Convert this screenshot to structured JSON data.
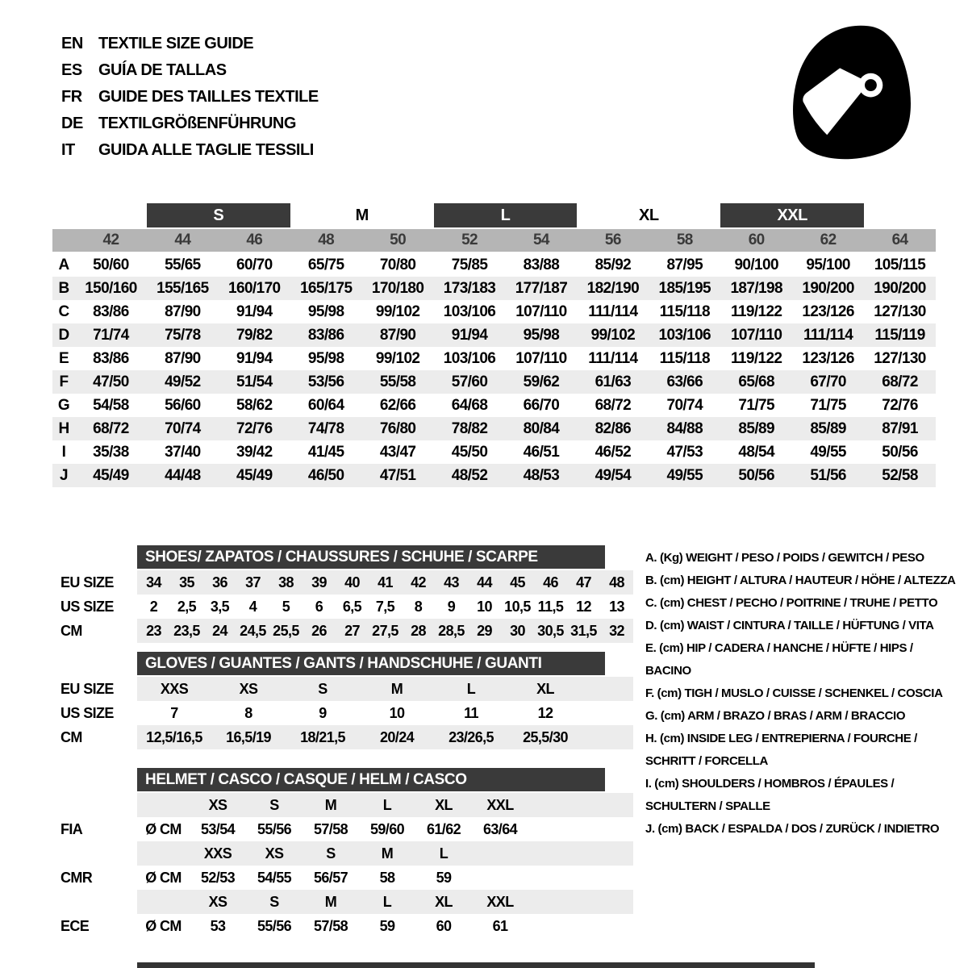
{
  "header": {
    "languages": [
      {
        "code": "EN",
        "title": "TEXTILE SIZE GUIDE"
      },
      {
        "code": "ES",
        "title": "GUÍA DE TALLAS"
      },
      {
        "code": "FR",
        "title": "GUIDE DES TAILLES TEXTILE"
      },
      {
        "code": "DE",
        "title": "TEXTILGRÖßENFÜHRUNG"
      },
      {
        "code": "IT",
        "title": "GUIDA ALLE TAGLIE TESSILI"
      }
    ],
    "helmet_icon": "full-face-racing-helmet"
  },
  "colors": {
    "dark_bar": "#3a3a3a",
    "number_band": "#b5b5b5",
    "row_stripe": "#ececec"
  },
  "size_table": {
    "groups": [
      {
        "label": "S",
        "dark": true
      },
      {
        "label": "M",
        "dark": false
      },
      {
        "label": "L",
        "dark": true
      },
      {
        "label": "XL",
        "dark": false
      },
      {
        "label": "XXL",
        "dark": true
      }
    ],
    "columns": [
      "42",
      "44",
      "46",
      "48",
      "50",
      "52",
      "54",
      "56",
      "58",
      "60",
      "62",
      "64"
    ],
    "rows": [
      {
        "key": "A",
        "values": [
          "50/60",
          "55/65",
          "60/70",
          "65/75",
          "70/80",
          "75/85",
          "83/88",
          "85/92",
          "87/95",
          "90/100",
          "95/100",
          "105/115"
        ]
      },
      {
        "key": "B",
        "values": [
          "150/160",
          "155/165",
          "160/170",
          "165/175",
          "170/180",
          "173/183",
          "177/187",
          "182/190",
          "185/195",
          "187/198",
          "190/200",
          "190/200"
        ]
      },
      {
        "key": "C",
        "values": [
          "83/86",
          "87/90",
          "91/94",
          "95/98",
          "99/102",
          "103/106",
          "107/110",
          "111/114",
          "115/118",
          "119/122",
          "123/126",
          "127/130"
        ]
      },
      {
        "key": "D",
        "values": [
          "71/74",
          "75/78",
          "79/82",
          "83/86",
          "87/90",
          "91/94",
          "95/98",
          "99/102",
          "103/106",
          "107/110",
          "111/114",
          "115/119"
        ]
      },
      {
        "key": "E",
        "values": [
          "83/86",
          "87/90",
          "91/94",
          "95/98",
          "99/102",
          "103/106",
          "107/110",
          "111/114",
          "115/118",
          "119/122",
          "123/126",
          "127/130"
        ]
      },
      {
        "key": "F",
        "values": [
          "47/50",
          "49/52",
          "51/54",
          "53/56",
          "55/58",
          "57/60",
          "59/62",
          "61/63",
          "63/66",
          "65/68",
          "67/70",
          "68/72"
        ]
      },
      {
        "key": "G",
        "values": [
          "54/58",
          "56/60",
          "58/62",
          "60/64",
          "62/66",
          "64/68",
          "66/70",
          "68/72",
          "70/74",
          "71/75",
          "71/75",
          "72/76"
        ]
      },
      {
        "key": "H",
        "values": [
          "68/72",
          "70/74",
          "72/76",
          "74/78",
          "76/80",
          "78/82",
          "80/84",
          "82/86",
          "84/88",
          "85/89",
          "85/89",
          "87/91"
        ]
      },
      {
        "key": "I",
        "values": [
          "35/38",
          "37/40",
          "39/42",
          "41/45",
          "43/47",
          "45/50",
          "46/51",
          "46/52",
          "47/53",
          "48/54",
          "49/55",
          "50/56"
        ]
      },
      {
        "key": "J",
        "values": [
          "45/49",
          "44/48",
          "45/49",
          "46/50",
          "47/51",
          "48/52",
          "48/53",
          "49/54",
          "49/55",
          "50/56",
          "51/56",
          "52/58"
        ]
      }
    ]
  },
  "shoes": {
    "title": "SHOES/ ZAPATOS / CHAUSSURES / SCHUHE / SCARPE",
    "rows": [
      {
        "label": "EU SIZE",
        "shaded": true,
        "values": [
          "34",
          "35",
          "36",
          "37",
          "38",
          "39",
          "40",
          "41",
          "42",
          "43",
          "44",
          "45",
          "46",
          "47",
          "48"
        ]
      },
      {
        "label": "US SIZE",
        "shaded": false,
        "values": [
          "2",
          "2,5",
          "3,5",
          "4",
          "5",
          "6",
          "6,5",
          "7,5",
          "8",
          "9",
          "10",
          "10,5",
          "11,5",
          "12",
          "13"
        ]
      },
      {
        "label": "CM",
        "shaded": true,
        "values": [
          "23",
          "23,5",
          "24",
          "24,5",
          "25,5",
          "26",
          "27",
          "27,5",
          "28",
          "28,5",
          "29",
          "30",
          "30,5",
          "31,5",
          "32"
        ]
      }
    ]
  },
  "gloves": {
    "title": "GLOVES / GUANTES / GANTS / HANDSCHUHE / GUANTI",
    "rows": [
      {
        "label": "EU SIZE",
        "shaded": true,
        "values": [
          "XXS",
          "XS",
          "S",
          "M",
          "L",
          "XL"
        ]
      },
      {
        "label": "US SIZE",
        "shaded": false,
        "values": [
          "7",
          "8",
          "9",
          "10",
          "11",
          "12"
        ]
      },
      {
        "label": "CM",
        "shaded": true,
        "values": [
          "12,5/16,5",
          "16,5/19",
          "18/21,5",
          "20/24",
          "23/26,5",
          "25,5/30"
        ]
      }
    ]
  },
  "helmet": {
    "title": "HELMET / CASCO / CASQUE / HELM / CASCO",
    "standards": [
      {
        "label": "FIA",
        "unit": "Ø CM",
        "sizes": [
          "XS",
          "S",
          "M",
          "L",
          "XL",
          "XXL"
        ],
        "values": [
          "53/54",
          "55/56",
          "57/58",
          "59/60",
          "61/62",
          "63/64"
        ]
      },
      {
        "label": "CMR",
        "unit": "Ø CM",
        "sizes": [
          "XXS",
          "XS",
          "S",
          "M",
          "L"
        ],
        "values": [
          "52/53",
          "54/55",
          "56/57",
          "58",
          "59"
        ]
      },
      {
        "label": "ECE",
        "unit": "Ø CM",
        "sizes": [
          "XS",
          "S",
          "M",
          "L",
          "XL",
          "XXL"
        ],
        "values": [
          "53",
          "55/56",
          "57/58",
          "59",
          "60",
          "61"
        ]
      }
    ]
  },
  "legend": {
    "items": [
      "A. (Kg) WEIGHT / PESO / POIDS / GEWITCH / PESO",
      "B. (cm) HEIGHT / ALTURA / HAUTEUR / HÖHE / ALTEZZA",
      "C. (cm) CHEST / PECHO / POITRINE / TRUHE / PETTO",
      "D. (cm) WAIST / CINTURA / TAILLE / HÜFTUNG / VITA",
      "E. (cm) HIP / CADERA / HANCHE / HÜFTE / HIPS / BACINO",
      "F. (cm) TIGH / MUSLO / CUISSE / SCHENKEL / COSCIA",
      "G. (cm) ARM / BRAZO / BRAS / ARM / BRACCIO",
      "H. (cm) INSIDE LEG / ENTREPIERNA / FOURCHE / SCHRITT / FORCELLA",
      "I. (cm) SHOULDERS / HOMBROS / ÉPAULES / SCHULTERN / SPALLE",
      "J. (cm) BACK / ESPALDA / DOS / ZURÜCK / INDIETRO"
    ]
  }
}
